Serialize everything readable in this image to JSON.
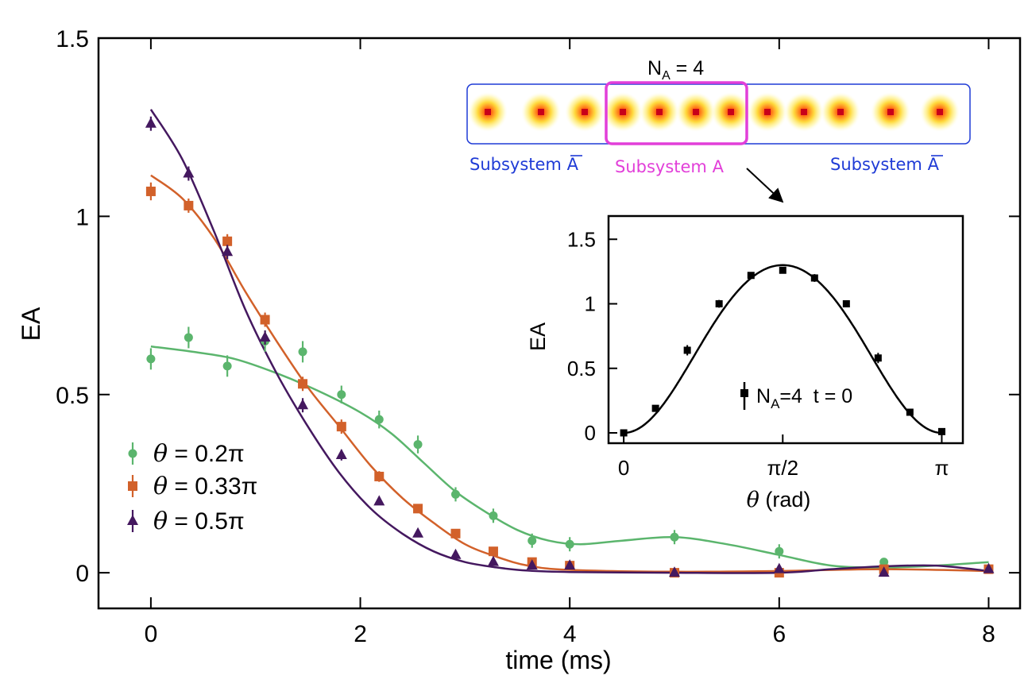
{
  "chart_data": [
    {
      "type": "scatter",
      "role": "main",
      "title": "",
      "xlabel": "time (ms)",
      "ylabel": "EA",
      "xlim": [
        -0.5,
        8.3
      ],
      "ylim": [
        -0.1,
        1.5
      ],
      "xticks": [
        0,
        2,
        4,
        6,
        8
      ],
      "xtick_labels": [
        "0",
        "2",
        "4",
        "6",
        "8"
      ],
      "yticks": [
        0,
        0.5,
        1,
        1.5
      ],
      "ytick_labels": [
        "0",
        "0.5",
        "1",
        "1.5"
      ],
      "legend_position": "bottom-left",
      "series": [
        {
          "name": "θ = 0.2π",
          "legend_prefix": "θ",
          "legend_suffix": " = 0.2π",
          "color": "#5bb56d",
          "marker": "circle",
          "points": [
            {
              "x": 0.0,
              "y": 0.6,
              "err": 0.03
            },
            {
              "x": 0.36,
              "y": 0.66,
              "err": 0.03
            },
            {
              "x": 0.73,
              "y": 0.58,
              "err": 0.03
            },
            {
              "x": 1.09,
              "y": 0.65,
              "err": 0.03
            },
            {
              "x": 1.45,
              "y": 0.62,
              "err": 0.03
            },
            {
              "x": 1.82,
              "y": 0.5,
              "err": 0.025
            },
            {
              "x": 2.18,
              "y": 0.43,
              "err": 0.025
            },
            {
              "x": 2.55,
              "y": 0.36,
              "err": 0.025
            },
            {
              "x": 2.91,
              "y": 0.22,
              "err": 0.02
            },
            {
              "x": 3.27,
              "y": 0.16,
              "err": 0.02
            },
            {
              "x": 3.64,
              "y": 0.09,
              "err": 0.02
            },
            {
              "x": 4.0,
              "y": 0.08,
              "err": 0.02
            },
            {
              "x": 5.0,
              "y": 0.1,
              "err": 0.02
            },
            {
              "x": 6.0,
              "y": 0.06,
              "err": 0.02
            },
            {
              "x": 7.0,
              "y": 0.03,
              "err": 0.01
            },
            {
              "x": 8.0,
              "y": 0.01,
              "err": 0.01
            }
          ],
          "fit": [
            {
              "x": 0.0,
              "y": 0.635
            },
            {
              "x": 0.4,
              "y": 0.62
            },
            {
              "x": 0.8,
              "y": 0.6
            },
            {
              "x": 1.2,
              "y": 0.56
            },
            {
              "x": 1.6,
              "y": 0.51
            },
            {
              "x": 2.0,
              "y": 0.45
            },
            {
              "x": 2.3,
              "y": 0.39
            },
            {
              "x": 2.6,
              "y": 0.31
            },
            {
              "x": 2.9,
              "y": 0.23
            },
            {
              "x": 3.2,
              "y": 0.17
            },
            {
              "x": 3.5,
              "y": 0.12
            },
            {
              "x": 3.8,
              "y": 0.09
            },
            {
              "x": 4.1,
              "y": 0.08
            },
            {
              "x": 4.5,
              "y": 0.09
            },
            {
              "x": 5.0,
              "y": 0.1
            },
            {
              "x": 5.5,
              "y": 0.08
            },
            {
              "x": 6.0,
              "y": 0.05
            },
            {
              "x": 6.5,
              "y": 0.02
            },
            {
              "x": 7.0,
              "y": 0.015
            },
            {
              "x": 7.5,
              "y": 0.02
            },
            {
              "x": 8.0,
              "y": 0.03
            }
          ]
        },
        {
          "name": "θ = 0.33π",
          "legend_prefix": "θ",
          "legend_suffix": " = 0.33π",
          "color": "#d2612a",
          "marker": "square",
          "points": [
            {
              "x": 0.0,
              "y": 1.07,
              "err": 0.025
            },
            {
              "x": 0.36,
              "y": 1.03,
              "err": 0.02
            },
            {
              "x": 0.73,
              "y": 0.93,
              "err": 0.02
            },
            {
              "x": 1.09,
              "y": 0.71,
              "err": 0.02
            },
            {
              "x": 1.45,
              "y": 0.53,
              "err": 0.02
            },
            {
              "x": 1.82,
              "y": 0.41,
              "err": 0.02
            },
            {
              "x": 2.18,
              "y": 0.27,
              "err": 0.015
            },
            {
              "x": 2.55,
              "y": 0.18,
              "err": 0.01
            },
            {
              "x": 2.91,
              "y": 0.11,
              "err": 0.01
            },
            {
              "x": 3.27,
              "y": 0.06,
              "err": 0.01
            },
            {
              "x": 3.64,
              "y": 0.03,
              "err": 0.01
            },
            {
              "x": 4.0,
              "y": 0.02,
              "err": 0.01
            },
            {
              "x": 5.0,
              "y": 0.0,
              "err": 0.01
            },
            {
              "x": 6.0,
              "y": 0.0,
              "err": 0.01
            },
            {
              "x": 7.0,
              "y": 0.01,
              "err": 0.01
            },
            {
              "x": 8.0,
              "y": 0.01,
              "err": 0.01
            }
          ],
          "fit": [
            {
              "x": 0.0,
              "y": 1.115
            },
            {
              "x": 0.3,
              "y": 1.05
            },
            {
              "x": 0.6,
              "y": 0.94
            },
            {
              "x": 0.9,
              "y": 0.79
            },
            {
              "x": 1.2,
              "y": 0.65
            },
            {
              "x": 1.5,
              "y": 0.52
            },
            {
              "x": 1.8,
              "y": 0.41
            },
            {
              "x": 2.1,
              "y": 0.3
            },
            {
              "x": 2.4,
              "y": 0.21
            },
            {
              "x": 2.7,
              "y": 0.14
            },
            {
              "x": 3.0,
              "y": 0.08
            },
            {
              "x": 3.3,
              "y": 0.045
            },
            {
              "x": 3.6,
              "y": 0.02
            },
            {
              "x": 4.0,
              "y": 0.008
            },
            {
              "x": 5.0,
              "y": 0.003
            },
            {
              "x": 6.0,
              "y": 0.005
            },
            {
              "x": 7.0,
              "y": 0.01
            },
            {
              "x": 8.0,
              "y": 0.005
            }
          ]
        },
        {
          "name": "θ = 0.5π",
          "legend_prefix": "θ",
          "legend_suffix": " = 0.5π",
          "color": "#44185f",
          "marker": "triangle",
          "points": [
            {
              "x": 0.0,
              "y": 1.26,
              "err": 0.02
            },
            {
              "x": 0.36,
              "y": 1.12,
              "err": 0.02
            },
            {
              "x": 0.73,
              "y": 0.9,
              "err": 0.02
            },
            {
              "x": 1.09,
              "y": 0.66,
              "err": 0.02
            },
            {
              "x": 1.45,
              "y": 0.47,
              "err": 0.02
            },
            {
              "x": 1.82,
              "y": 0.33,
              "err": 0.015
            },
            {
              "x": 2.18,
              "y": 0.2,
              "err": 0.01
            },
            {
              "x": 2.55,
              "y": 0.11,
              "err": 0.01
            },
            {
              "x": 2.91,
              "y": 0.05,
              "err": 0.01
            },
            {
              "x": 3.27,
              "y": 0.03,
              "err": 0.01
            },
            {
              "x": 3.64,
              "y": 0.02,
              "err": 0.01
            },
            {
              "x": 4.0,
              "y": 0.02,
              "err": 0.01
            },
            {
              "x": 5.0,
              "y": 0.0,
              "err": 0.01
            },
            {
              "x": 6.0,
              "y": 0.01,
              "err": 0.01
            },
            {
              "x": 7.0,
              "y": 0.0,
              "err": 0.01
            },
            {
              "x": 8.0,
              "y": 0.01,
              "err": 0.01
            }
          ],
          "fit": [
            {
              "x": 0.0,
              "y": 1.3
            },
            {
              "x": 0.3,
              "y": 1.16
            },
            {
              "x": 0.6,
              "y": 0.96
            },
            {
              "x": 0.9,
              "y": 0.74
            },
            {
              "x": 1.2,
              "y": 0.56
            },
            {
              "x": 1.5,
              "y": 0.41
            },
            {
              "x": 1.8,
              "y": 0.28
            },
            {
              "x": 2.1,
              "y": 0.18
            },
            {
              "x": 2.4,
              "y": 0.11
            },
            {
              "x": 2.7,
              "y": 0.06
            },
            {
              "x": 3.0,
              "y": 0.03
            },
            {
              "x": 3.3,
              "y": 0.015
            },
            {
              "x": 3.6,
              "y": 0.006
            },
            {
              "x": 4.0,
              "y": 0.002
            },
            {
              "x": 5.0,
              "y": 0.0
            },
            {
              "x": 6.0,
              "y": 0.0
            },
            {
              "x": 6.5,
              "y": 0.01
            },
            {
              "x": 7.0,
              "y": 0.018
            },
            {
              "x": 7.5,
              "y": 0.02
            },
            {
              "x": 8.0,
              "y": 0.005
            }
          ]
        }
      ]
    },
    {
      "type": "scatter",
      "role": "inset",
      "xlabel_prefix": "θ",
      "xlabel_suffix": " (rad)",
      "ylabel": "EA",
      "xlim": [
        -0.15,
        3.35
      ],
      "ylim": [
        -0.08,
        1.68
      ],
      "xticks": [
        0,
        1.5708,
        3.1416
      ],
      "xtick_labels": [
        "0",
        "π/2",
        "π"
      ],
      "yticks": [
        0,
        0.5,
        1,
        1.5
      ],
      "ytick_labels": [
        "0",
        "0.5",
        "1",
        "1.5"
      ],
      "legend": {
        "main": "N",
        "sub": "A",
        "rest": "=4  t = 0"
      },
      "series": [
        {
          "name": "N_A=4 t=0",
          "color": "#000000",
          "marker": "square",
          "points": [
            {
              "x": 0.0,
              "y": 0.0,
              "err": 0.02
            },
            {
              "x": 0.314,
              "y": 0.19,
              "err": 0.02
            },
            {
              "x": 0.628,
              "y": 0.64,
              "err": 0.04
            },
            {
              "x": 0.942,
              "y": 1.0,
              "err": 0.03
            },
            {
              "x": 1.257,
              "y": 1.22,
              "err": 0.02
            },
            {
              "x": 1.571,
              "y": 1.26,
              "err": 0.02
            },
            {
              "x": 1.885,
              "y": 1.2,
              "err": 0.03
            },
            {
              "x": 2.199,
              "y": 1.0,
              "err": 0.02
            },
            {
              "x": 2.513,
              "y": 0.58,
              "err": 0.04
            },
            {
              "x": 2.827,
              "y": 0.16,
              "err": 0.02
            },
            {
              "x": 3.142,
              "y": 0.01,
              "err": 0.02
            }
          ],
          "fit_function": "1.30 * sin(theta)^2 * (1 + 0.2*(1 - sin(theta)^2))"
        }
      ]
    }
  ],
  "diagram": {
    "na_label_main": "N",
    "na_label_sub": "A",
    "na_label_rest": " = 4",
    "subsystem_abar_left_text": "Subsystem A",
    "subsystem_a_text": "Subsystem A",
    "subsystem_abar_right_text": "Subsystem A",
    "atom_count": 12,
    "box_color": "#1f3bd6",
    "highlight_color": "#e23fd9"
  }
}
